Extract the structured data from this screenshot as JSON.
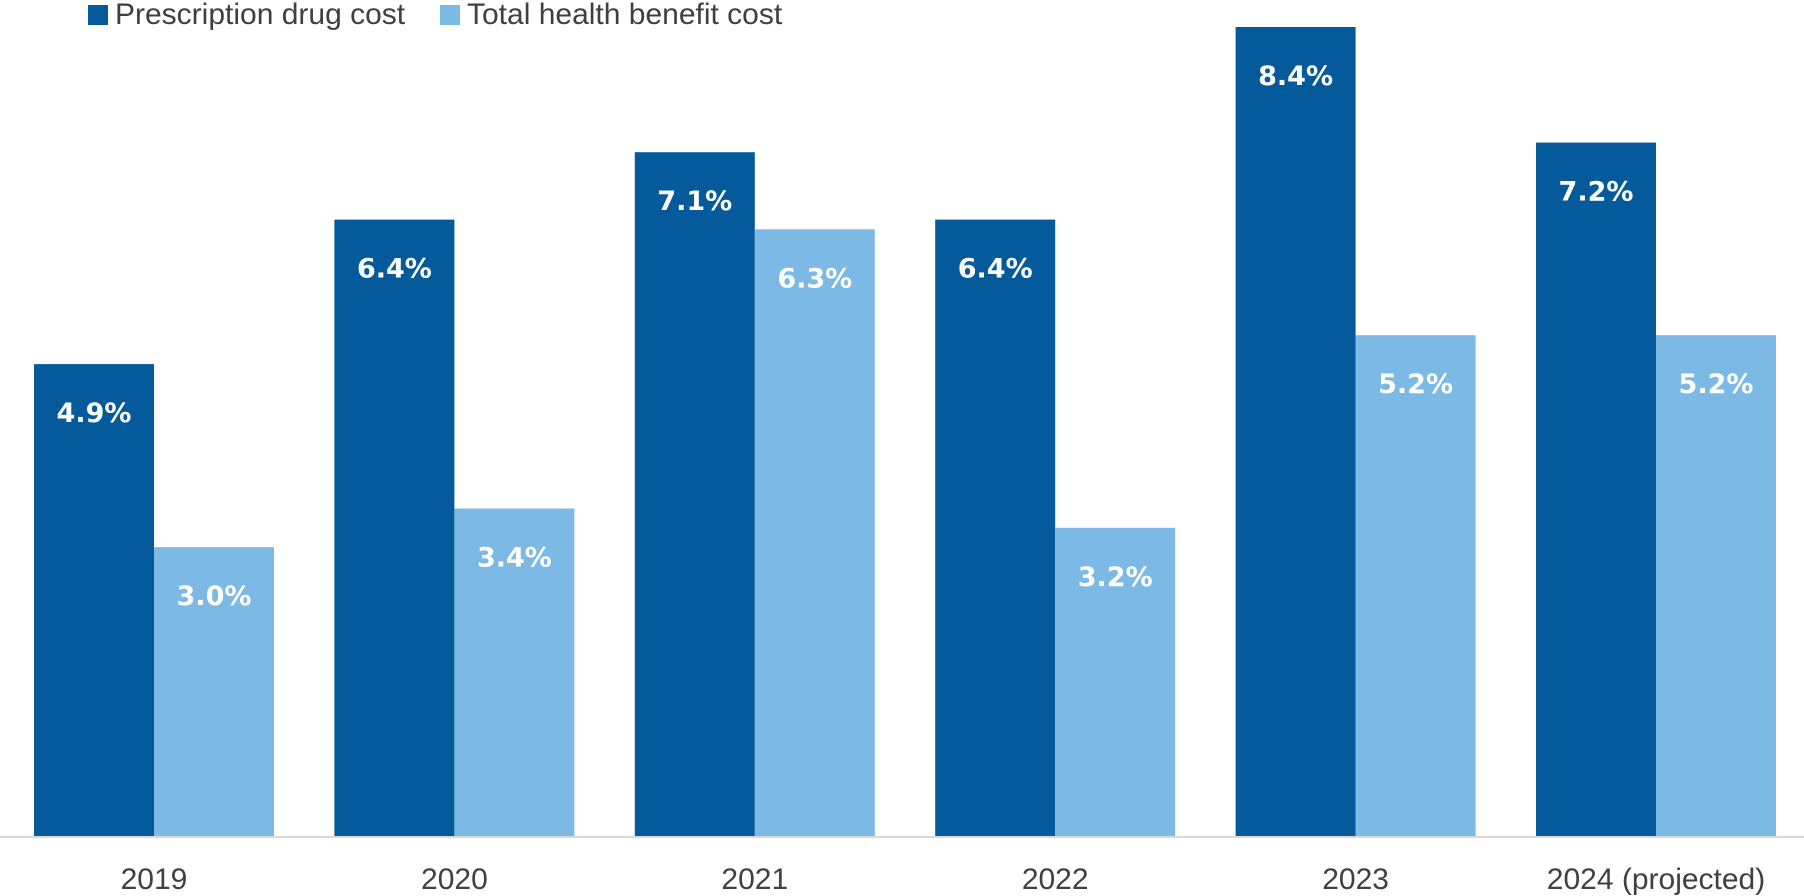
{
  "chart_data": {
    "type": "bar",
    "title": "",
    "xlabel": "",
    "ylabel": "",
    "categories": [
      "2019",
      "2020",
      "2021",
      "2022",
      "2023",
      "2024 (projected)"
    ],
    "series": [
      {
        "name": "Prescription drug cost",
        "color": "#045a9b",
        "values": [
          4.9,
          6.4,
          7.1,
          6.4,
          8.4,
          7.2
        ],
        "labels": [
          "4.9%",
          "6.4%",
          "7.1%",
          "6.4%",
          "8.4%",
          "7.2%"
        ]
      },
      {
        "name": "Total health benefit cost",
        "color": "#7cb9e4",
        "values": [
          3.0,
          3.4,
          6.3,
          3.2,
          5.2,
          5.2
        ],
        "labels": [
          "3.0%",
          "3.4%",
          "6.3%",
          "3.2%",
          "5.2%",
          "5.2%"
        ]
      }
    ],
    "ylim": [
      0,
      8.4
    ],
    "grid": false,
    "legend_position": "top-left"
  }
}
